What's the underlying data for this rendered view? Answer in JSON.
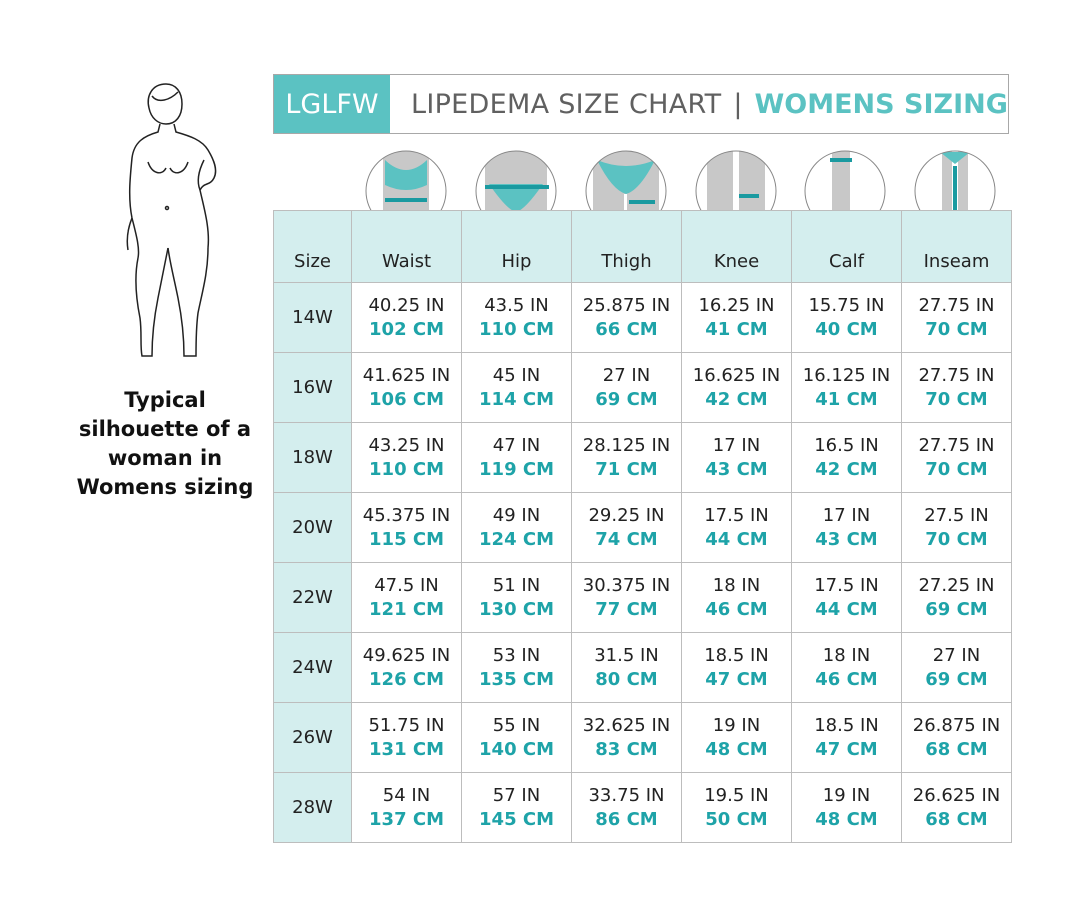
{
  "title": {
    "brand": "LGLFW",
    "text": "LIPEDEMA SIZE CHART",
    "separator": "|",
    "subtitle": "WOMENS SIZING"
  },
  "caption": "Typical silhouette of a woman in Womens sizing",
  "colors": {
    "accent": "#5bc2c2",
    "cm_text": "#1ea3a8",
    "header_bg": "#d4eeee"
  },
  "columns": [
    "Size",
    "Waist",
    "Hip",
    "Thigh",
    "Knee",
    "Calf",
    "Inseam"
  ],
  "icons": [
    "waist-measure-icon",
    "hip-measure-icon",
    "thigh-measure-icon",
    "knee-measure-icon",
    "calf-measure-icon",
    "inseam-measure-icon"
  ],
  "rows": [
    {
      "size": "14W",
      "cells": [
        [
          "40.25 IN",
          "102 CM"
        ],
        [
          "43.5 IN",
          "110 CM"
        ],
        [
          "25.875 IN",
          "66 CM"
        ],
        [
          "16.25 IN",
          "41 CM"
        ],
        [
          "15.75 IN",
          "40 CM"
        ],
        [
          "27.75 IN",
          "70 CM"
        ]
      ]
    },
    {
      "size": "16W",
      "cells": [
        [
          "41.625 IN",
          "106 CM"
        ],
        [
          "45 IN",
          "114 CM"
        ],
        [
          "27 IN",
          "69 CM"
        ],
        [
          "16.625 IN",
          "42 CM"
        ],
        [
          "16.125 IN",
          "41 CM"
        ],
        [
          "27.75 IN",
          "70 CM"
        ]
      ]
    },
    {
      "size": "18W",
      "cells": [
        [
          "43.25 IN",
          "110 CM"
        ],
        [
          "47 IN",
          "119 CM"
        ],
        [
          "28.125 IN",
          "71 CM"
        ],
        [
          "17 IN",
          "43 CM"
        ],
        [
          "16.5 IN",
          "42 CM"
        ],
        [
          "27.75 IN",
          "70 CM"
        ]
      ]
    },
    {
      "size": "20W",
      "cells": [
        [
          "45.375 IN",
          "115 CM"
        ],
        [
          "49 IN",
          "124 CM"
        ],
        [
          "29.25 IN",
          "74 CM"
        ],
        [
          "17.5 IN",
          "44 CM"
        ],
        [
          "17 IN",
          "43 CM"
        ],
        [
          "27.5 IN",
          "70 CM"
        ]
      ]
    },
    {
      "size": "22W",
      "cells": [
        [
          "47.5 IN",
          "121 CM"
        ],
        [
          "51 IN",
          "130 CM"
        ],
        [
          "30.375 IN",
          "77 CM"
        ],
        [
          "18 IN",
          "46 CM"
        ],
        [
          "17.5 IN",
          "44 CM"
        ],
        [
          "27.25 IN",
          "69 CM"
        ]
      ]
    },
    {
      "size": "24W",
      "cells": [
        [
          "49.625 IN",
          "126 CM"
        ],
        [
          "53 IN",
          "135 CM"
        ],
        [
          "31.5 IN",
          "80 CM"
        ],
        [
          "18.5 IN",
          "47 CM"
        ],
        [
          "18 IN",
          "46 CM"
        ],
        [
          "27 IN",
          "69 CM"
        ]
      ]
    },
    {
      "size": "26W",
      "cells": [
        [
          "51.75 IN",
          "131 CM"
        ],
        [
          "55 IN",
          "140 CM"
        ],
        [
          "32.625 IN",
          "83 CM"
        ],
        [
          "19 IN",
          "48 CM"
        ],
        [
          "18.5 IN",
          "47 CM"
        ],
        [
          "26.875 IN",
          "68 CM"
        ]
      ]
    },
    {
      "size": "28W",
      "cells": [
        [
          "54 IN",
          "137 CM"
        ],
        [
          "57 IN",
          "145 CM"
        ],
        [
          "33.75 IN",
          "86 CM"
        ],
        [
          "19.5 IN",
          "50 CM"
        ],
        [
          "19 IN",
          "48 CM"
        ],
        [
          "26.625 IN",
          "68 CM"
        ]
      ]
    }
  ]
}
